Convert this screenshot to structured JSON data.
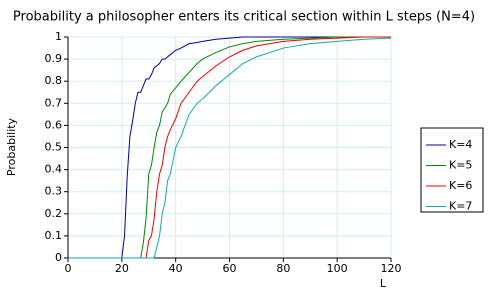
{
  "chart_data": {
    "type": "line",
    "title": "Probability a philosopher enters its critical section within L steps (N=4)",
    "x_label": "L",
    "y_label": "Probability",
    "x": [
      0,
      20,
      21,
      22,
      23,
      24,
      25,
      26,
      27,
      28,
      29,
      30,
      31,
      32,
      33,
      34,
      35,
      36,
      37,
      38,
      40,
      42,
      45,
      48,
      50,
      55,
      60,
      65,
      70,
      80,
      90,
      100,
      110,
      120
    ],
    "series": [
      {
        "name": "K=4",
        "color": "#000099",
        "values": [
          0,
          0,
          0.1,
          0.37,
          0.55,
          0.62,
          0.7,
          0.75,
          0.75,
          0.78,
          0.81,
          0.81,
          0.83,
          0.86,
          0.87,
          0.88,
          0.9,
          0.9,
          0.91,
          0.92,
          0.94,
          0.95,
          0.97,
          0.975,
          0.98,
          0.99,
          0.995,
          1,
          1,
          1,
          1,
          1,
          1,
          1
        ]
      },
      {
        "name": "K=5",
        "color": "#008800",
        "values": [
          0,
          0,
          0,
          0,
          0,
          0,
          0,
          0,
          0,
          0.07,
          0.18,
          0.38,
          0.42,
          0.5,
          0.57,
          0.6,
          0.66,
          0.68,
          0.7,
          0.74,
          0.77,
          0.8,
          0.84,
          0.88,
          0.9,
          0.93,
          0.955,
          0.97,
          0.98,
          0.99,
          0.995,
          1,
          1,
          1
        ]
      },
      {
        "name": "K=6",
        "color": "#ee0000",
        "values": [
          0,
          0,
          0,
          0,
          0,
          0,
          0,
          0,
          0,
          0,
          0,
          0.08,
          0.1,
          0.18,
          0.3,
          0.38,
          0.42,
          0.5,
          0.55,
          0.58,
          0.63,
          0.7,
          0.75,
          0.8,
          0.82,
          0.87,
          0.91,
          0.94,
          0.96,
          0.98,
          0.99,
          0.995,
          1,
          1
        ]
      },
      {
        "name": "K=7",
        "color": "#11aaaa",
        "values": [
          0,
          0,
          0,
          0,
          0,
          0,
          0,
          0,
          0,
          0,
          0,
          0,
          0,
          0,
          0.05,
          0.1,
          0.2,
          0.25,
          0.35,
          0.38,
          0.5,
          0.55,
          0.65,
          0.7,
          0.72,
          0.78,
          0.83,
          0.88,
          0.91,
          0.95,
          0.97,
          0.98,
          0.99,
          0.995
        ]
      }
    ],
    "xlim": [
      0,
      120
    ],
    "ylim": [
      0,
      1
    ],
    "xticks": [
      0,
      20,
      40,
      60,
      80,
      100,
      120
    ],
    "yticks": [
      0,
      0.1,
      0.2,
      0.3,
      0.4,
      0.5,
      0.6,
      0.7,
      0.8,
      0.9,
      1
    ],
    "grid": true,
    "legend": "right"
  }
}
